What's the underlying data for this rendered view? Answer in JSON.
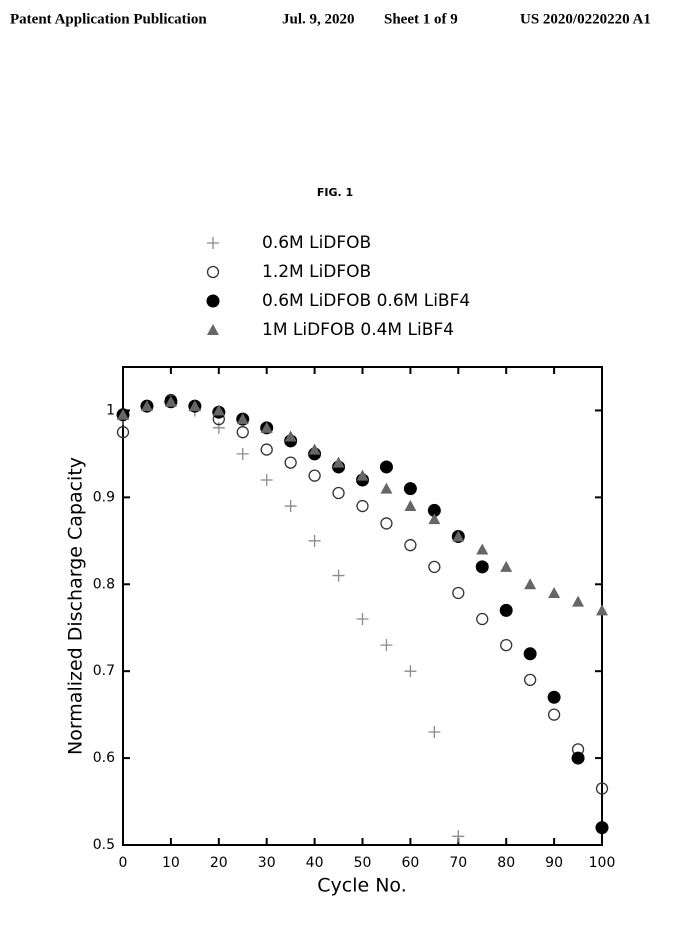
{
  "header": {
    "left": "Patent Application Publication",
    "date": "Jul. 9, 2020",
    "sheet": "Sheet 1 of 9",
    "number": "US 2020/0220220 A1"
  },
  "figure_label": "FIG. 1",
  "chart_data": {
    "type": "scatter",
    "x_label": "Cycle No.",
    "y_label": "Normalized Discharge Capacity",
    "x": [
      0,
      5,
      10,
      15,
      20,
      25,
      30,
      35,
      40,
      45,
      50,
      55,
      60,
      65,
      70,
      75,
      80,
      85,
      90,
      95,
      100
    ],
    "series": [
      {
        "name": "0.6M LiDFOB",
        "color": "#8a8a8a",
        "marker": "plus",
        "values": [
          0.99,
          1.005,
          1.01,
          1.0,
          0.98,
          0.95,
          0.92,
          0.89,
          0.85,
          0.81,
          0.76,
          0.73,
          0.7,
          0.63,
          0.51,
          null,
          null,
          null,
          null,
          null,
          null
        ]
      },
      {
        "name": "1.2M LiDFOB",
        "color": "#333333",
        "marker": "circle-open",
        "values": [
          0.975,
          1.005,
          1.012,
          1.005,
          0.99,
          0.975,
          0.955,
          0.94,
          0.925,
          0.905,
          0.89,
          0.87,
          0.845,
          0.82,
          0.79,
          0.76,
          0.73,
          0.69,
          0.65,
          0.61,
          0.565
        ]
      },
      {
        "name": "0.6M LiDFOB 0.6M LiBF4",
        "color": "#000000",
        "marker": "circle",
        "values": [
          0.995,
          1.005,
          1.01,
          1.005,
          0.998,
          0.99,
          0.98,
          0.965,
          0.95,
          0.935,
          0.92,
          0.935,
          0.91,
          0.885,
          0.855,
          0.82,
          0.77,
          0.72,
          0.67,
          0.6,
          0.52
        ]
      },
      {
        "name": "1M LiDFOB 0.4M LiBF4",
        "color": "#666666",
        "marker": "triangle",
        "values": [
          0.995,
          1.005,
          1.01,
          1.005,
          1.0,
          0.99,
          0.98,
          0.97,
          0.955,
          0.94,
          0.925,
          0.91,
          0.89,
          0.875,
          0.855,
          0.84,
          0.82,
          0.8,
          0.79,
          0.78,
          0.77
        ]
      }
    ],
    "xlim": [
      0,
      100
    ],
    "xticks": [
      0,
      10,
      20,
      30,
      40,
      50,
      60,
      70,
      80,
      90,
      100
    ],
    "ylim": [
      0.5,
      1.05
    ],
    "yticks": [
      0.5,
      0.6,
      0.7,
      0.8,
      0.9,
      1
    ]
  }
}
